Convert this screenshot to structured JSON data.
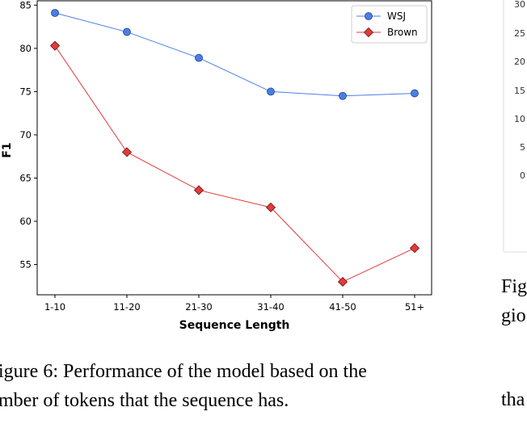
{
  "chart_data": {
    "type": "line",
    "xlabel": "Sequence Length",
    "ylabel": "F1",
    "categories": [
      "1-10",
      "11-20",
      "21-30",
      "31-40",
      "41-50",
      "51+"
    ],
    "ylim": [
      51.5,
      85.5
    ],
    "yticks": [
      "55",
      "60",
      "65",
      "70",
      "75",
      "80",
      "85"
    ],
    "legend_position": "top-right",
    "grid": false,
    "series": [
      {
        "name": "WSJ",
        "values": [
          84.1,
          81.9,
          78.9,
          75.0,
          74.5,
          74.8
        ],
        "color": "#4a7fe6",
        "marker": "circle"
      },
      {
        "name": "Brown",
        "values": [
          80.3,
          68.0,
          63.6,
          61.6,
          53.0,
          56.9
        ],
        "color": "#e23b3b",
        "marker": "diamond"
      }
    ]
  },
  "caption": {
    "line1": "igure 6:  Performance of the model based on the",
    "line2": "mber of tokens that the sequence has."
  },
  "right_panel": {
    "axis_ticks": [
      "30",
      "25",
      "20",
      "15",
      "10",
      "5",
      "0"
    ],
    "fragment_1": "Fig",
    "fragment_2": "gio",
    "fragment_3": "tha"
  }
}
